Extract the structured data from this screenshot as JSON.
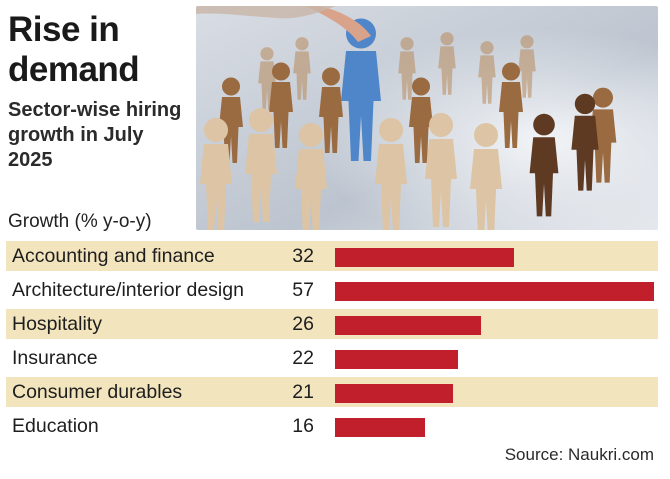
{
  "header": {
    "title_line1": "Rise in",
    "title_line2": "demand",
    "subtitle_line1": "Sector-wise hiring",
    "subtitle_line2": "growth in July",
    "subtitle_line3": "2025"
  },
  "growth_label": "Growth (% y-o-y)",
  "source": "Source: Naukri.com",
  "colors": {
    "bar": "#c01f2b",
    "row_shade": "#f2e4bd"
  },
  "chart_data": {
    "type": "bar",
    "orientation": "horizontal",
    "categories": [
      "Accounting and finance",
      "Architecture/interior design",
      "Hospitality",
      "Insurance",
      "Consumer durables",
      "Education"
    ],
    "values": [
      32,
      57,
      26,
      22,
      21,
      16
    ],
    "xlim": [
      0,
      57
    ],
    "grid": false
  }
}
